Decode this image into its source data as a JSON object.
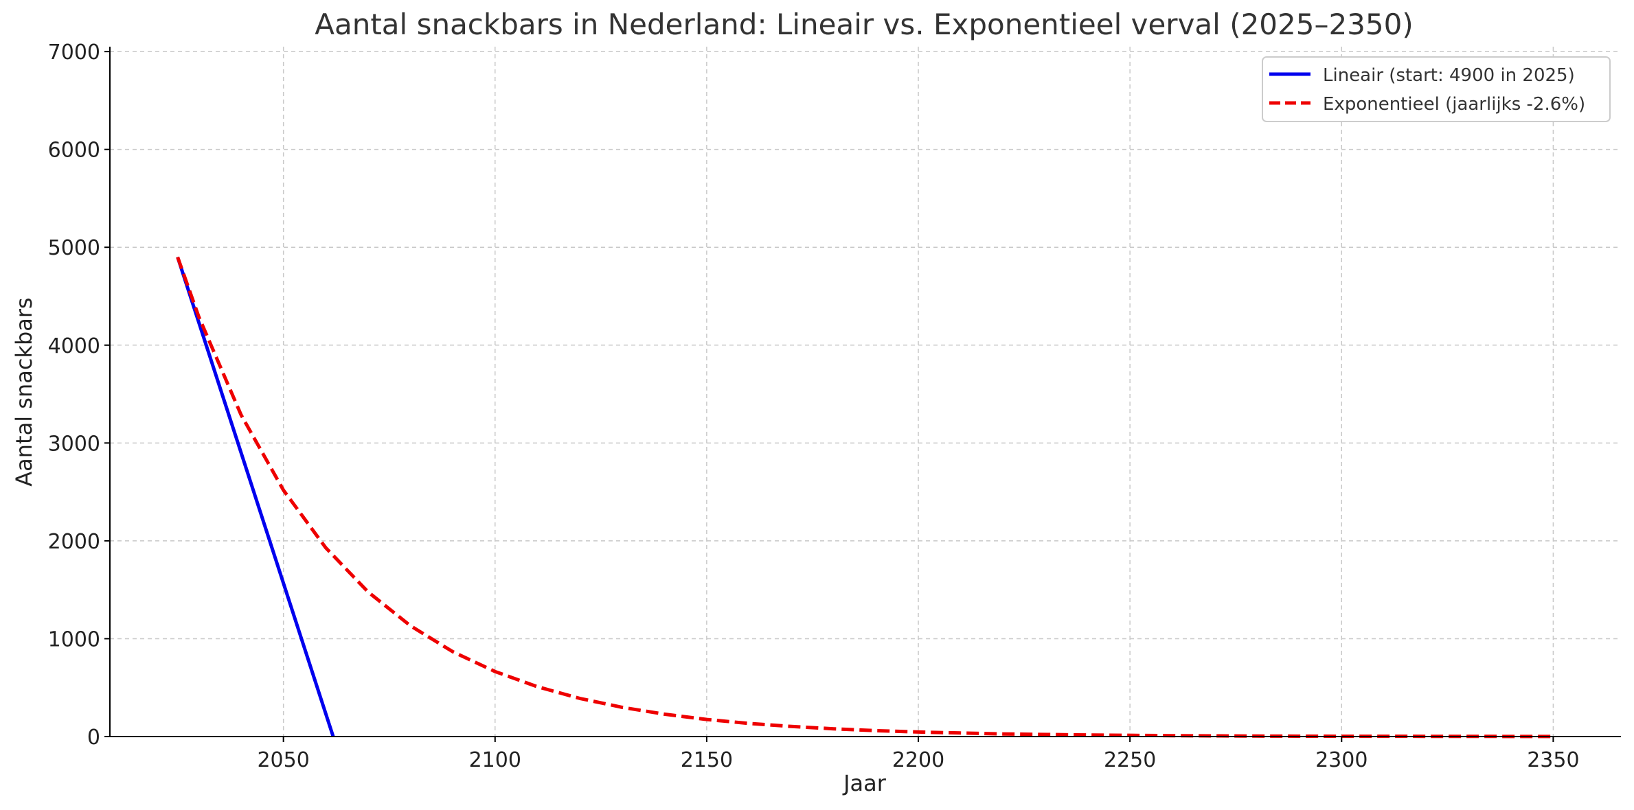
{
  "chart_data": {
    "type": "line",
    "title": "Aantal snackbars in Nederland: Lineair vs. Exponentieel verval (2025–2350)",
    "xlabel": "Jaar",
    "ylabel": "Aantal snackbars",
    "xlim": [
      2009,
      2366
    ],
    "ylim": [
      0,
      7050
    ],
    "xticks": [
      2050,
      2100,
      2150,
      2200,
      2250,
      2300,
      2350
    ],
    "yticks": [
      0,
      1000,
      2000,
      3000,
      4000,
      5000,
      6000,
      7000
    ],
    "grid": true,
    "legend_position": "top-right",
    "series": [
      {
        "name": "Lineair (start: 4900 in 2025)",
        "color": "#0000ee",
        "style": "solid",
        "x": [
          2025,
          2061.75
        ],
        "y": [
          4900,
          0
        ]
      },
      {
        "name": "Exponentieel (jaarlijks -2.6%)",
        "color": "#ee0000",
        "style": "dashed",
        "x": [
          2025,
          2030,
          2040,
          2050,
          2060,
          2070,
          2080,
          2090,
          2100,
          2110,
          2120,
          2130,
          2140,
          2150,
          2160,
          2170,
          2180,
          2190,
          2200,
          2220,
          2240,
          2260,
          2280,
          2300,
          2320,
          2350
        ],
        "y": [
          4900,
          4290,
          3287,
          2518,
          1929,
          1478,
          1132,
          867,
          664,
          509,
          390,
          299,
          229,
          175,
          134,
          103,
          79,
          60,
          46,
          27,
          16,
          9,
          5,
          3,
          2,
          1
        ]
      }
    ]
  }
}
